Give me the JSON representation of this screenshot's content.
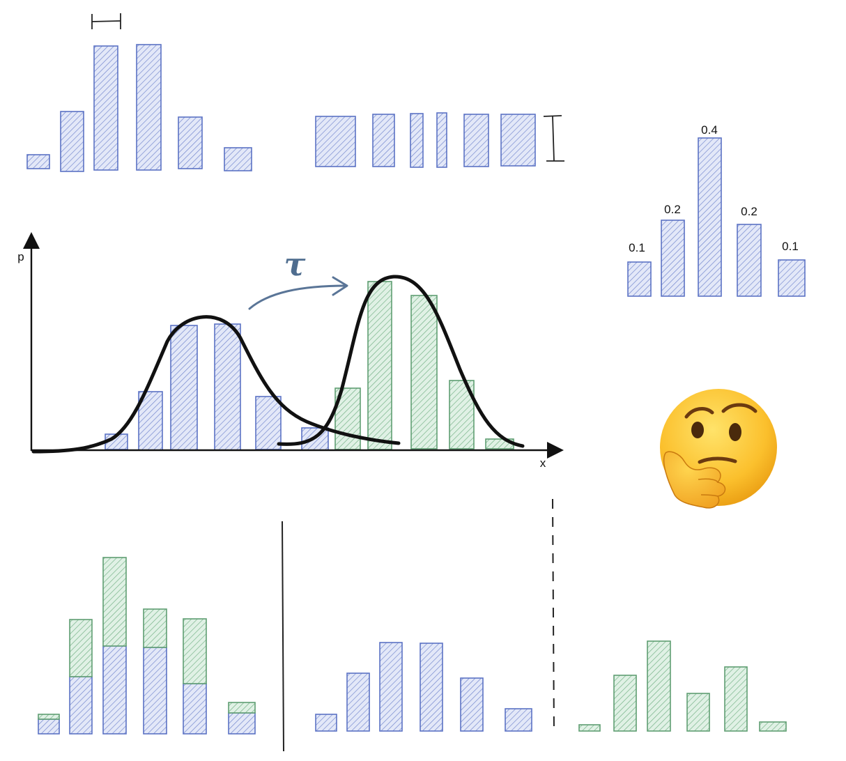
{
  "colors": {
    "blue_fill": "#dfe5f7",
    "blue_stroke": "#5b72c4",
    "green_fill": "#dcefe1",
    "green_stroke": "#5f9e72",
    "curve": "#111111",
    "arrow": "#5a7597"
  },
  "axes": {
    "y_label": "p",
    "x_label": "x"
  },
  "transform_label": "τ",
  "prob_labels": [
    "0.1",
    "0.2",
    "0.4",
    "0.2",
    "0.1"
  ],
  "emoji": "🤔",
  "emoji_name": "thinking-face",
  "chart_data": [
    {
      "type": "bar",
      "panel": "top-left histogram (equal bin width)",
      "series": [
        {
          "color": "blue",
          "values": [
            0.06,
            0.22,
            0.44,
            0.44,
            0.18,
            0.08
          ]
        }
      ]
    },
    {
      "type": "bar",
      "panel": "top-middle histogram (equal bin height)",
      "series": [
        {
          "color": "blue",
          "values": [
            0.2,
            0.2,
            0.2,
            0.2,
            0.2,
            0.2
          ]
        }
      ]
    },
    {
      "type": "bar",
      "panel": "top-right probability bars",
      "series": [
        {
          "color": "blue",
          "values": [
            0.1,
            0.2,
            0.4,
            0.2,
            0.1
          ]
        }
      ]
    },
    {
      "type": "bar",
      "panel": "center: source bins",
      "series": [
        {
          "color": "blue",
          "values": [
            0.05,
            0.2,
            0.43,
            0.43,
            0.18,
            0.07
          ]
        }
      ]
    },
    {
      "type": "bar",
      "panel": "center: target bins",
      "series": [
        {
          "color": "green",
          "values": [
            0.19,
            0.58,
            0.53,
            0.24,
            0.03
          ]
        }
      ]
    },
    {
      "type": "bar",
      "panel": "bottom-left stacked",
      "series": [
        {
          "color": "blue",
          "values": [
            0.06,
            0.21,
            0.32,
            0.32,
            0.17,
            0.07
          ]
        },
        {
          "color": "green",
          "values": [
            0.02,
            0.21,
            0.32,
            0.14,
            0.23,
            0.04
          ]
        }
      ]
    },
    {
      "type": "bar",
      "panel": "bottom-middle",
      "series": [
        {
          "color": "blue",
          "values": [
            0.06,
            0.22,
            0.32,
            0.32,
            0.19,
            0.08
          ]
        }
      ]
    },
    {
      "type": "bar",
      "panel": "bottom-right",
      "series": [
        {
          "color": "green",
          "values": [
            0.02,
            0.21,
            0.32,
            0.14,
            0.23,
            0.04
          ]
        }
      ]
    }
  ]
}
